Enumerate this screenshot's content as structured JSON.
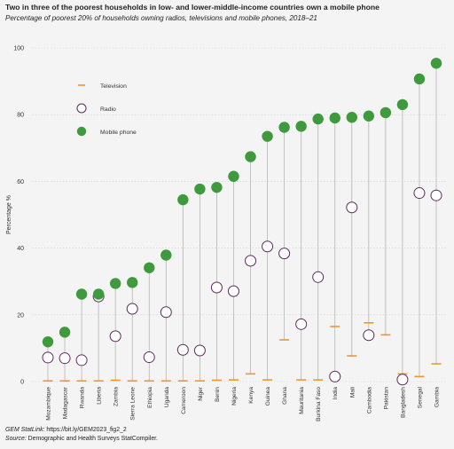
{
  "title": "Two in three of the poorest households in low- and lower-middle-income countries own a mobile phone",
  "subtitle": "Percentage of poorest 20% of households owning radios, televisions and mobile phones, 2018–21",
  "footer": {
    "statlink_label": "GEM StatLink:",
    "statlink_url": "https://bit.ly/GEM2023_fig2_2",
    "source_label": "Source:",
    "source_text": "Demographic and Health Surveys StatCompiler."
  },
  "colors": {
    "television": "#f0962e",
    "radio_stroke": "#5c2a5e",
    "mobile": "#3e9a3d",
    "stem": "#b5b5b5",
    "grid": "#cfcfcf"
  },
  "chart_data": {
    "type": "scatter",
    "ylabel": "Percentage %",
    "xlabel": "",
    "ylim": [
      0,
      100
    ],
    "yticks": [
      0,
      20,
      40,
      60,
      80,
      100
    ],
    "legend": {
      "placement": "top-left",
      "items": [
        "Television",
        "Radio",
        "Mobile phone"
      ]
    },
    "categories": [
      "Mozambique",
      "Madagascar",
      "Rwanda",
      "Liberia",
      "Zambia",
      "Sierra Leone",
      "Ethiopia",
      "Uganda",
      "Cameroon",
      "Niger",
      "Benin",
      "Nigeria",
      "Kenya",
      "Guinea",
      "Ghana",
      "Mauritania",
      "Burkina Faso",
      "India",
      "Mali",
      "Cambodia",
      "Pakistan",
      "Bangladesh",
      "Senegal",
      "Gambia"
    ],
    "series": [
      {
        "name": "Television",
        "values": [
          0.2,
          0.2,
          0.2,
          0.2,
          0.4,
          0.2,
          0.2,
          0.2,
          0.2,
          0.2,
          0.4,
          0.5,
          2.3,
          0.5,
          12.5,
          0.5,
          0.5,
          16.5,
          7.7,
          17.6,
          14,
          2.3,
          1.5,
          5.3
        ]
      },
      {
        "name": "Radio",
        "values": [
          7.2,
          7,
          6.4,
          25.5,
          13.6,
          21.8,
          7.3,
          20.8,
          9.5,
          9.3,
          28.2,
          27.1,
          36.2,
          40.5,
          38.4,
          17.2,
          31.3,
          1.5,
          52.2,
          13.9,
          null,
          0.6,
          56.5,
          55.8
        ]
      },
      {
        "name": "Mobile phone",
        "values": [
          11.9,
          14.8,
          26.2,
          26.2,
          29.4,
          29.7,
          34.1,
          37.9,
          54.5,
          57.7,
          58.2,
          61.5,
          67.4,
          73.5,
          76.2,
          76.5,
          78.7,
          79,
          79.2,
          79.6,
          80.6,
          83,
          90.7,
          95.4
        ]
      }
    ]
  }
}
